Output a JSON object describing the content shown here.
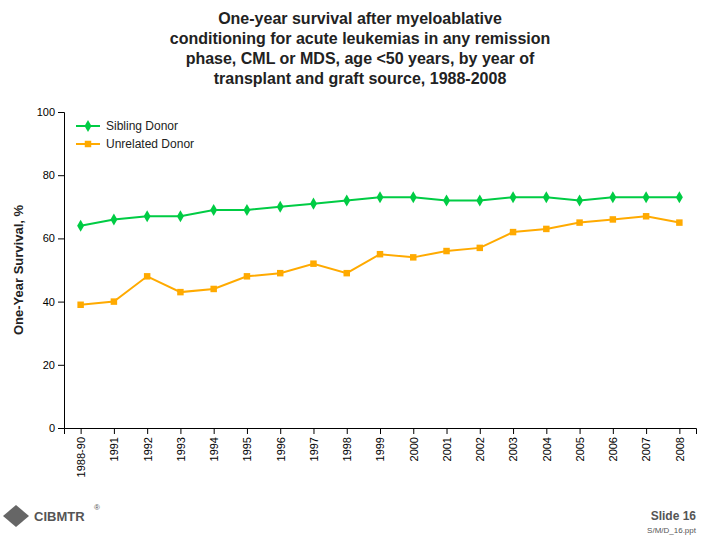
{
  "chart_data": {
    "type": "line",
    "title": "One-year survival after myeloablative\nconditioning for acute leukemias in any remission\nphase, CML or MDS, age <50 years, by year of\ntransplant and graft source, 1988-2008",
    "y_label": "One-Year Survival, %",
    "categories": [
      "1988-90",
      "1991",
      "1992",
      "1993",
      "1994",
      "1995",
      "1996",
      "1997",
      "1998",
      "1999",
      "2000",
      "2001",
      "2002",
      "2003",
      "2004",
      "2005",
      "2006",
      "2007",
      "2008"
    ],
    "series": [
      {
        "name": "Sibling Donor",
        "color": "#00cc44",
        "marker": "diamond",
        "values": [
          64,
          66,
          67,
          67,
          69,
          69,
          70,
          71,
          72,
          73,
          73,
          72,
          72,
          73,
          73,
          72,
          73,
          73,
          73
        ]
      },
      {
        "name": "Unrelated Donor",
        "color": "#ffaa00",
        "marker": "square",
        "values": [
          39,
          40,
          48,
          43,
          44,
          48,
          49,
          52,
          49,
          55,
          54,
          56,
          57,
          62,
          63,
          65,
          66,
          67,
          65
        ]
      }
    ],
    "ylim": [
      0,
      100
    ],
    "yticks": [
      0,
      20,
      40,
      60,
      80,
      100
    ],
    "grid": false,
    "legend": "upper left",
    "annotations": [
      "CIBMTR",
      "®",
      "Slide 16",
      "S/M/D_16.ppt"
    ]
  }
}
